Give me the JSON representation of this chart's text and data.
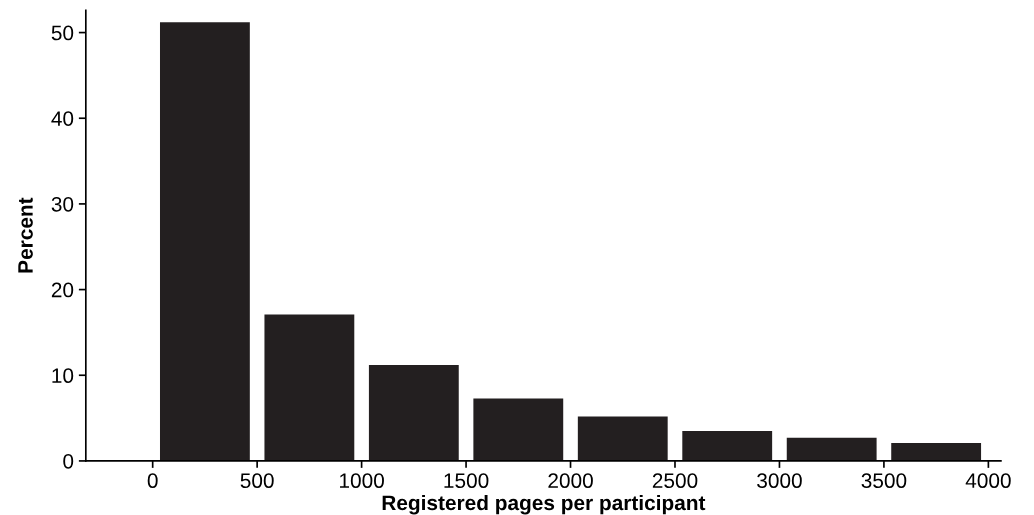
{
  "chart_data": {
    "type": "histogram",
    "xlabel": "Registered pages per participant",
    "ylabel": "Percent",
    "bins": [
      0,
      500,
      1000,
      1500,
      2000,
      2500,
      3000,
      3500,
      4000
    ],
    "values": [
      51.2,
      17.1,
      11.2,
      7.3,
      5.2,
      3.5,
      2.7,
      2.1
    ],
    "color": "#231f20",
    "xlim": [
      -320,
      4060
    ],
    "xticks": [
      0,
      500,
      1000,
      1500,
      2000,
      2500,
      3000,
      3500,
      4000
    ],
    "ylim": [
      0,
      52.6
    ],
    "yticks": [
      0,
      10,
      20,
      30,
      40,
      50
    ],
    "grid": false,
    "legend": false
  }
}
